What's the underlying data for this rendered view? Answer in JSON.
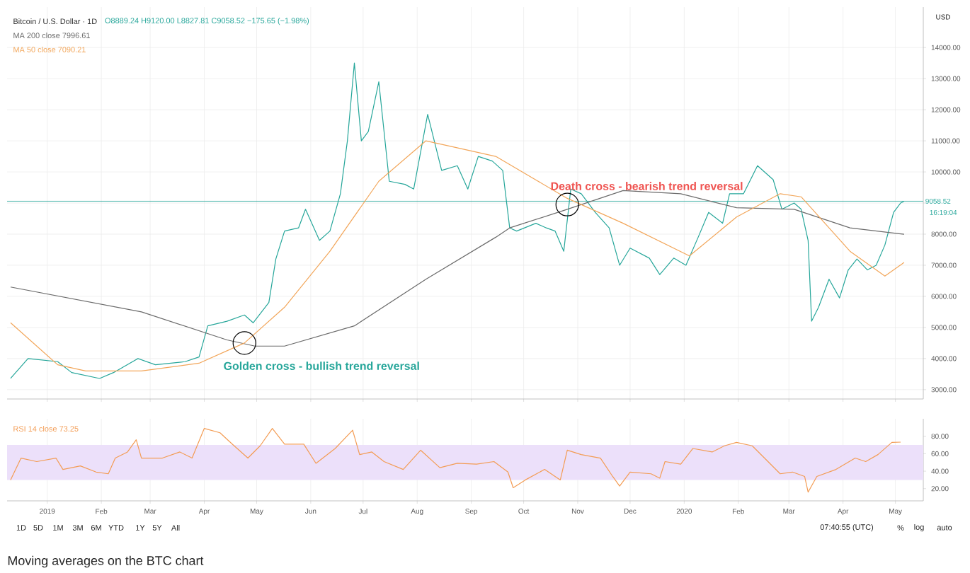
{
  "chart_data": [
    {
      "type": "line",
      "title": "Bitcoin / U.S. Dollar · 1D",
      "subtitle": "O8889.24 H9120.00 L8827.81 C9058.52 −175.65 (−1.98%)",
      "xlim": [
        "2018-12-09",
        "2020-05-17"
      ],
      "ylim": [
        2700,
        15300
      ],
      "xticks": [
        {
          "value": "2019-01-01",
          "label": null
        },
        {
          "value": "2019-02-01",
          "label": null
        },
        {
          "value": "2019-03-01",
          "label": null
        },
        {
          "value": "2019-04-01",
          "label": null
        },
        {
          "value": "2019-05-01",
          "label": null
        },
        {
          "value": "2019-06-01",
          "label": null
        },
        {
          "value": "2019-07-01",
          "label": null
        },
        {
          "value": "2019-08-01",
          "label": null
        },
        {
          "value": "2019-09-01",
          "label": null
        },
        {
          "value": "2019-10-01",
          "label": null
        },
        {
          "value": "2019-11-01",
          "label": null
        },
        {
          "value": "2019-12-01",
          "label": null
        },
        {
          "value": "2020-01-01",
          "label": null
        },
        {
          "value": "2020-02-01",
          "label": null
        },
        {
          "value": "2020-03-01",
          "label": null
        },
        {
          "value": "2020-04-01",
          "label": null
        },
        {
          "value": "2020-05-01",
          "label": null
        }
      ],
      "yticks": [
        {
          "value": 3000,
          "label": "3000.00"
        },
        {
          "value": 4000,
          "label": "4000.00"
        },
        {
          "value": 5000,
          "label": "5000.00"
        },
        {
          "value": 6000,
          "label": "6000.00"
        },
        {
          "value": 7000,
          "label": "7000.00"
        },
        {
          "value": 8000,
          "label": "8000.00"
        },
        {
          "value": 9000,
          "label": null
        },
        {
          "value": 10000,
          "label": "10000.00"
        },
        {
          "value": 11000,
          "label": "11000.00"
        },
        {
          "value": 12000,
          "label": "12000.00"
        },
        {
          "value": 13000,
          "label": "13000.00"
        },
        {
          "value": 14000,
          "label": "14000.00"
        }
      ],
      "tick_labels": "y",
      "grid": true,
      "legend": "top left",
      "marker": "none",
      "series": [
        {
          "color": "#26a69a",
          "x": [
            "2018-12-11",
            "2018-12-21",
            "2019-01-07",
            "2019-01-15",
            "2019-01-31",
            "2019-02-08",
            "2019-02-22",
            "2019-03-04",
            "2019-03-21",
            "2019-03-29",
            "2019-04-03",
            "2019-04-14",
            "2019-04-24",
            "2019-04-29",
            "2019-05-08",
            "2019-05-12",
            "2019-05-17",
            "2019-05-25",
            "2019-05-29",
            "2019-06-06",
            "2019-06-12",
            "2019-06-18",
            "2019-06-22",
            "2019-06-26",
            "2019-06-30",
            "2019-07-04",
            "2019-07-10",
            "2019-07-16",
            "2019-07-25",
            "2019-07-30",
            "2019-08-07",
            "2019-08-15",
            "2019-08-24",
            "2019-08-30",
            "2019-09-05",
            "2019-09-13",
            "2019-09-19",
            "2019-09-23",
            "2019-09-27",
            "2019-10-08",
            "2019-10-14",
            "2019-10-19",
            "2019-10-24",
            "2019-10-28",
            "2019-11-03",
            "2019-11-11",
            "2019-11-19",
            "2019-11-25",
            "2019-12-01",
            "2019-12-12",
            "2019-12-18",
            "2019-12-26",
            "2020-01-02",
            "2020-01-09",
            "2020-01-15",
            "2020-01-23",
            "2020-01-27",
            "2020-02-04",
            "2020-02-12",
            "2020-02-21",
            "2020-02-26",
            "2020-03-04",
            "2020-03-08",
            "2020-03-12",
            "2020-03-14",
            "2020-03-18",
            "2020-03-24",
            "2020-03-30",
            "2020-04-04",
            "2020-04-09",
            "2020-04-15",
            "2020-04-20",
            "2020-04-25",
            "2020-04-30",
            "2020-05-04",
            "2020-05-06"
          ],
          "values": [
            3364,
            4000,
            3900,
            3550,
            3360,
            3550,
            4000,
            3800,
            3900,
            4050,
            5050,
            5200,
            5400,
            5150,
            5800,
            7200,
            8100,
            8200,
            8800,
            7800,
            8100,
            9300,
            11000,
            13500,
            11000,
            11300,
            12900,
            9700,
            9600,
            9450,
            11850,
            10050,
            10200,
            9450,
            10500,
            10350,
            10050,
            8200,
            8100,
            8350,
            8200,
            8100,
            7450,
            9450,
            9300,
            8700,
            8200,
            7000,
            7550,
            7230,
            6700,
            7230,
            7000,
            7900,
            8700,
            8350,
            9300,
            9300,
            10200,
            9750,
            8800,
            9000,
            8800,
            7800,
            5200,
            5650,
            6550,
            5950,
            6850,
            7200,
            6850,
            7000,
            7650,
            8700,
            9000,
            9058.52
          ]
        },
        {
          "name": "MA 200 close 7996.61",
          "color": "#6b6b6b",
          "x": [
            "2018-12-11",
            "2019-02-24",
            "2019-04-14",
            "2019-04-30",
            "2019-05-17",
            "2019-06-26",
            "2019-08-06",
            "2019-09-15",
            "2019-09-23",
            "2019-10-26",
            "2019-11-27",
            "2019-12-30",
            "2020-01-31",
            "2020-03-04",
            "2020-04-05",
            "2020-05-06"
          ],
          "values": [
            6300,
            5500,
            4600,
            4400,
            4400,
            5050,
            6550,
            7900,
            8200,
            8800,
            9400,
            9300,
            8850,
            8800,
            8200,
            7996.61
          ]
        },
        {
          "name": "MA 50 close 7090.21",
          "color": "#f2a65a",
          "x": [
            "2018-12-11",
            "2019-01-07",
            "2019-01-23",
            "2019-02-24",
            "2019-03-29",
            "2019-04-24",
            "2019-05-17",
            "2019-06-12",
            "2019-07-10",
            "2019-08-06",
            "2019-08-22",
            "2019-09-15",
            "2019-10-26",
            "2019-11-27",
            "2020-01-04",
            "2020-01-31",
            "2020-02-25",
            "2020-03-08",
            "2020-04-05",
            "2020-04-25",
            "2020-05-06"
          ],
          "values": [
            5150,
            3800,
            3600,
            3600,
            3850,
            4500,
            5650,
            7450,
            9700,
            11000,
            10800,
            10500,
            9150,
            8350,
            7300,
            8550,
            9300,
            9200,
            7450,
            6650,
            7090.21
          ]
        }
      ],
      "ref_lines": [
        {
          "axis": "y",
          "value": 9058.52,
          "label": "9058.52",
          "color": "#26a69a"
        }
      ],
      "annotations": [
        {
          "text": "Golden cross - bullish trend reversal",
          "x": "2019-04-24",
          "y": 4500
        },
        {
          "text": "Death cross - bearish trend reversal",
          "x": "2019-10-26",
          "y": 8950
        },
        "USD",
        "16:19:04"
      ]
    },
    {
      "type": "line",
      "xlim": [
        "2018-12-09",
        "2020-05-17"
      ],
      "ylim": [
        6,
        100
      ],
      "xticks": [
        {
          "value": "2019-01-01",
          "label": "2019"
        },
        {
          "value": "2019-02-01",
          "label": "Feb"
        },
        {
          "value": "2019-03-01",
          "label": "Mar"
        },
        {
          "value": "2019-04-01",
          "label": "Apr"
        },
        {
          "value": "2019-05-01",
          "label": "May"
        },
        {
          "value": "2019-06-01",
          "label": "Jun"
        },
        {
          "value": "2019-07-01",
          "label": "Jul"
        },
        {
          "value": "2019-08-01",
          "label": "Aug"
        },
        {
          "value": "2019-09-01",
          "label": "Sep"
        },
        {
          "value": "2019-10-01",
          "label": "Oct"
        },
        {
          "value": "2019-11-01",
          "label": "Nov"
        },
        {
          "value": "2019-12-01",
          "label": "Dec"
        },
        {
          "value": "2020-01-01",
          "label": "2020"
        },
        {
          "value": "2020-02-01",
          "label": "Feb"
        },
        {
          "value": "2020-03-01",
          "label": "Mar"
        },
        {
          "value": "2020-04-01",
          "label": "Apr"
        },
        {
          "value": "2020-05-01",
          "label": "May"
        }
      ],
      "yticks": [
        {
          "value": 20,
          "label": "20.00"
        },
        {
          "value": 40,
          "label": "40.00"
        },
        {
          "value": 60,
          "label": "60.00"
        },
        {
          "value": 80,
          "label": "80.00"
        }
      ],
      "grid": "x",
      "legend": "top left",
      "marker": "none",
      "bands": [
        {
          "axis": "y",
          "from": 30,
          "to": 70,
          "color": "#ece0fa"
        }
      ],
      "series": [
        {
          "name": "RSI 14 close 73.25",
          "color": "#f39c54",
          "x": [
            "2018-12-11",
            "2018-12-17",
            "2018-12-26",
            "2019-01-06",
            "2019-01-10",
            "2019-01-20",
            "2019-01-29",
            "2019-02-05",
            "2019-02-09",
            "2019-02-16",
            "2019-02-21",
            "2019-02-24",
            "2019-03-08",
            "2019-03-18",
            "2019-03-25",
            "2019-04-01",
            "2019-04-10",
            "2019-04-17",
            "2019-04-26",
            "2019-05-03",
            "2019-05-10",
            "2019-05-17",
            "2019-05-28",
            "2019-06-04",
            "2019-06-15",
            "2019-06-25",
            "2019-06-29",
            "2019-07-06",
            "2019-07-13",
            "2019-07-24",
            "2019-08-03",
            "2019-08-14",
            "2019-08-24",
            "2019-09-04",
            "2019-09-14",
            "2019-09-22",
            "2019-09-25",
            "2019-10-02",
            "2019-10-13",
            "2019-10-22",
            "2019-10-26",
            "2019-11-03",
            "2019-11-14",
            "2019-11-21",
            "2019-11-25",
            "2019-12-01",
            "2019-12-13",
            "2019-12-18",
            "2019-12-21",
            "2019-12-30",
            "2020-01-06",
            "2020-01-17",
            "2020-01-24",
            "2020-01-31",
            "2020-02-09",
            "2020-02-16",
            "2020-02-25",
            "2020-03-03",
            "2020-03-10",
            "2020-03-12",
            "2020-03-17",
            "2020-03-28",
            "2020-04-08",
            "2020-04-14",
            "2020-04-21",
            "2020-04-29",
            "2020-05-04"
          ],
          "values": [
            30,
            55,
            51,
            55,
            42,
            46,
            39,
            37,
            55,
            62,
            76,
            55,
            55,
            62,
            55,
            89,
            84,
            71,
            55,
            69,
            89,
            71,
            71,
            49,
            66,
            87,
            59,
            62,
            51,
            42,
            64,
            44,
            49,
            48,
            51,
            39,
            21,
            30,
            42,
            30,
            64,
            59,
            55,
            34,
            23,
            39,
            37,
            32,
            51,
            48,
            66,
            62,
            69,
            73,
            69,
            55,
            37,
            39,
            34,
            16,
            34,
            42,
            55,
            51,
            59,
            73,
            73.25
          ]
        }
      ],
      "annotations": [
        "1D",
        "5D",
        "1M",
        "3M",
        "6M",
        "YTD",
        "1Y",
        "5Y",
        "All",
        "07:40:55 (UTC)",
        "%",
        "log",
        "auto",
        "Moving averages on the BTC chart"
      ]
    }
  ]
}
